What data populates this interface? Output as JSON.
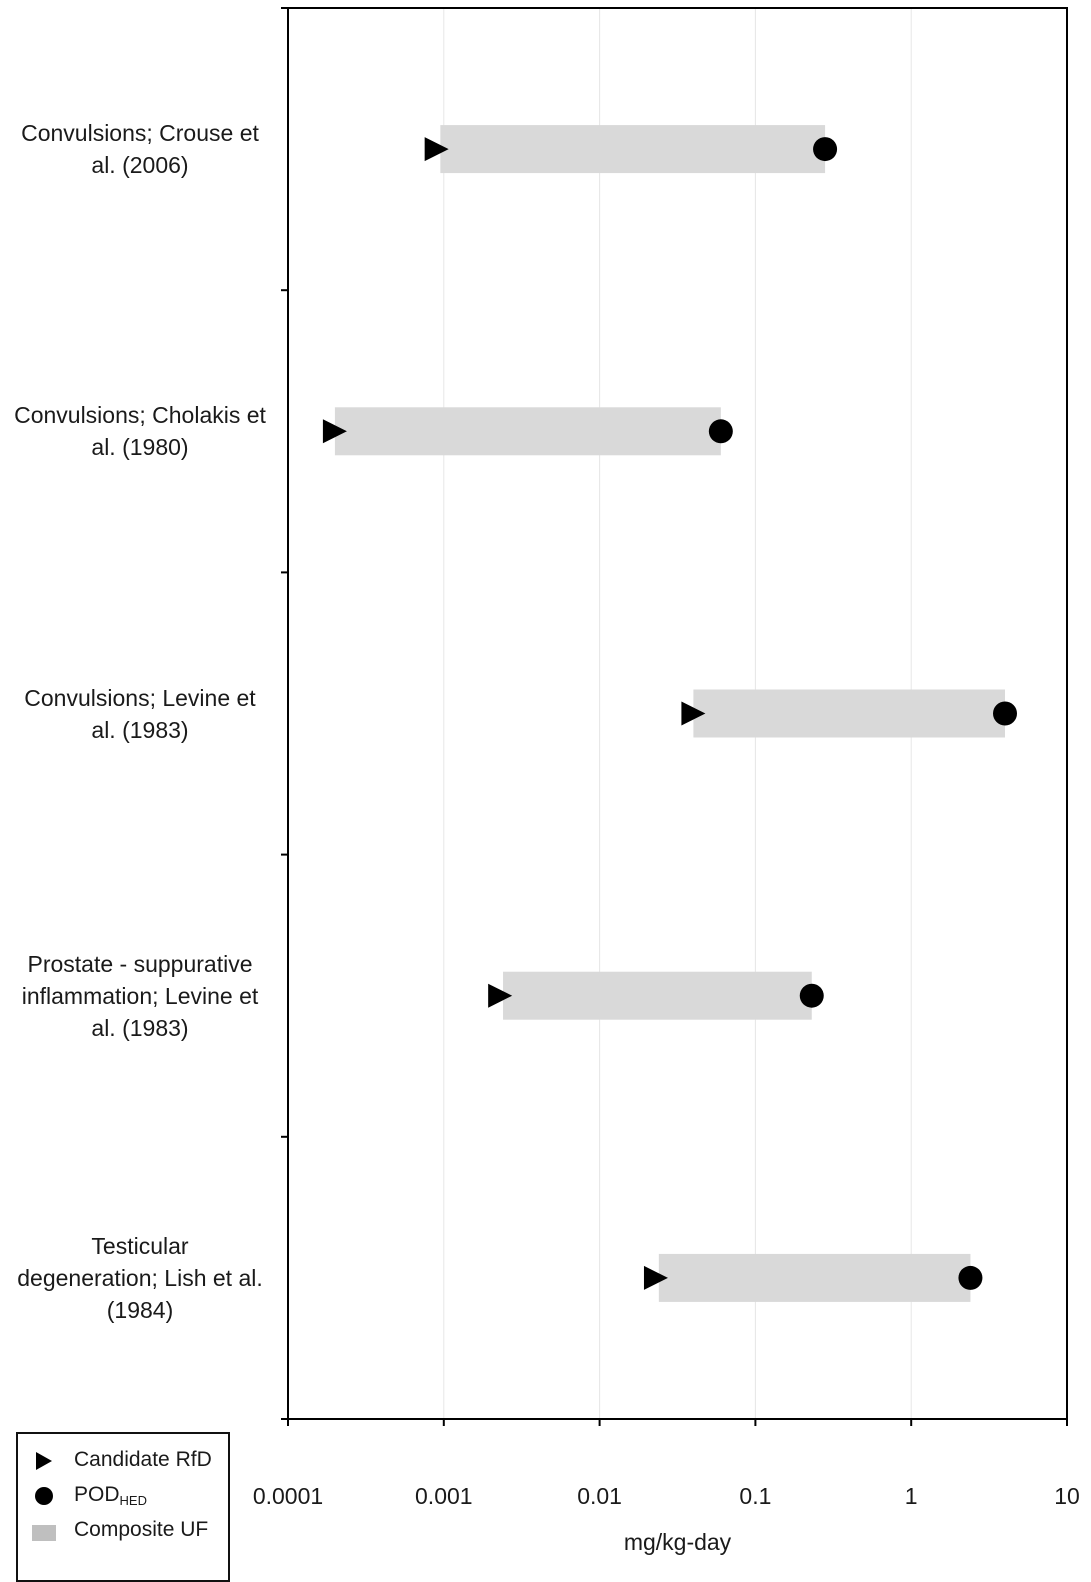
{
  "chart_data": {
    "type": "range-dot",
    "xscale": "log",
    "xlim": [
      0.0001,
      10
    ],
    "xticks": [
      "0.0001",
      "0.001",
      "0.01",
      "0.1",
      "1",
      "10"
    ],
    "xlabel": "mg/kg-day",
    "grid": "vertical",
    "legend_position": "bottom-left",
    "categories": [
      "Convulsions; Crouse et al. (2006)",
      "Convulsions; Cholakis et al. (1980)",
      "Convulsions; Levine et al. (1983)",
      "Prostate - suppurative inflammation; Levine et al. (1983)",
      "Testicular degeneration; Lish et al. (1984)"
    ],
    "series": [
      {
        "name": "Candidate RfD",
        "marker": "triangle-right",
        "values": [
          0.0009,
          0.0002,
          0.04,
          0.0023,
          0.023
        ]
      },
      {
        "name": "POD",
        "name_subscript": "HED",
        "marker": "circle",
        "values": [
          0.28,
          0.06,
          4.0,
          0.23,
          2.4
        ]
      },
      {
        "name": "Composite UF",
        "marker": "bar",
        "ranges": [
          [
            0.00095,
            0.28
          ],
          [
            0.0002,
            0.06
          ],
          [
            0.04,
            4.0
          ],
          [
            0.0024,
            0.23
          ],
          [
            0.024,
            2.4
          ]
        ]
      }
    ],
    "colors": {
      "bar": "#d9d9d9",
      "marker": "#000000",
      "grid": "#e6e6e6",
      "axis": "#000000"
    }
  },
  "labels": {
    "cat": [
      [
        "Convulsions; Crouse et",
        "al. (2006)"
      ],
      [
        "Convulsions; Cholakis et",
        "al. (1980)"
      ],
      [
        "Convulsions; Levine et",
        "al. (1983)"
      ],
      [
        "Prostate - suppurative",
        "inflammation; Levine et",
        "al. (1983)"
      ],
      [
        "Testicular",
        "degeneration; Lish et al.",
        "(1984)"
      ]
    ]
  },
  "legend": {
    "rfd": "Candidate RfD",
    "pod_main": "POD",
    "pod_sub": "HED",
    "uf": "Composite UF"
  }
}
